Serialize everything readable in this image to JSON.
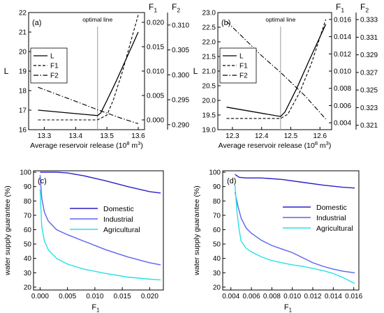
{
  "chart_data": [
    {
      "type": "line",
      "panel_label": "(a)",
      "annotation": "optimal line",
      "optimal_x": 13.47,
      "xlabel": "Average reservoir release (10",
      "xlabel_sup": "8",
      "xlabel_unit": " m",
      "xlabel_unit_sup": "3",
      "xlabel_end": ")",
      "xlim": [
        13.25,
        13.62
      ],
      "xticks": [
        "13.3",
        "13.4",
        "13.5",
        "13.6"
      ],
      "xtick_values": [
        13.3,
        13.4,
        13.5,
        13.6
      ],
      "y_left": {
        "label": "L",
        "lim": [
          16,
          22
        ],
        "ticks": [
          16,
          17,
          18,
          19,
          20,
          21,
          22
        ]
      },
      "y_f1": {
        "label": "F",
        "label_sub": "1",
        "lim": [
          -0.002,
          0.022
        ],
        "ticks": [
          "0.000",
          "0.005",
          "0.010",
          "0.015",
          "0.020"
        ],
        "tick_values": [
          0,
          0.005,
          0.01,
          0.015,
          0.02
        ]
      },
      "y_f2": {
        "label": "F",
        "label_sub": "2",
        "lim": [
          0.289,
          0.3125
        ],
        "ticks": [
          "0.290",
          "0.295",
          "0.300",
          "0.305",
          "0.310"
        ],
        "tick_values": [
          0.29,
          0.295,
          0.3,
          0.305,
          0.31
        ]
      },
      "legend": [
        "L",
        "F1",
        "F2"
      ],
      "series": [
        {
          "name": "L",
          "axis": "left",
          "dash": "solid",
          "x": [
            13.28,
            13.47,
            13.48,
            13.5,
            13.53,
            13.6
          ],
          "values": [
            17.0,
            16.72,
            16.85,
            17.5,
            18.5,
            21.0
          ]
        },
        {
          "name": "F1",
          "axis": "f1",
          "dash": "dash",
          "x": [
            13.28,
            13.47,
            13.5,
            13.52,
            13.55,
            13.58,
            13.6
          ],
          "values": [
            0.0,
            0.0,
            0.001,
            0.004,
            0.01,
            0.017,
            0.0215
          ]
        },
        {
          "name": "F2",
          "axis": "f2",
          "dash": "dashdot",
          "x": [
            13.28,
            13.4,
            13.47,
            13.55,
            13.6
          ],
          "values": [
            0.2975,
            0.2947,
            0.293,
            0.2912,
            0.2902
          ]
        }
      ]
    },
    {
      "type": "line",
      "panel_label": "(b)",
      "annotation": "optimal line",
      "optimal_x": 12.465,
      "xlabel": "Average reservoir release (10",
      "xlabel_sup": "8",
      "xlabel_unit": " m",
      "xlabel_unit_sup": "3",
      "xlabel_end": ")",
      "xlim": [
        12.25,
        12.64
      ],
      "xticks": [
        "12.3",
        "12.4",
        "12.5",
        "12.6"
      ],
      "xtick_values": [
        12.3,
        12.4,
        12.5,
        12.6
      ],
      "y_left": {
        "label": "L",
        "lim": [
          19,
          23
        ],
        "ticks": [
          "19.0",
          "19.5",
          "20.0",
          "20.5",
          "21.0",
          "21.5",
          "22.0",
          "22.5",
          "23.0"
        ],
        "tick_values": [
          19,
          19.5,
          20,
          20.5,
          21,
          21.5,
          22,
          22.5,
          23
        ]
      },
      "y_f1": {
        "label": "F",
        "label_sub": "1",
        "lim": [
          0.0032,
          0.0168
        ],
        "ticks": [
          "0.004",
          "0.006",
          "0.008",
          "0.010",
          "0.012",
          "0.014",
          "0.016"
        ],
        "tick_values": [
          0.004,
          0.006,
          0.008,
          0.01,
          0.012,
          0.014,
          0.016
        ]
      },
      "y_f2": {
        "label": "F",
        "label_sub": "2",
        "lim": [
          0.3205,
          0.3338
        ],
        "ticks": [
          "0.321",
          "0.323",
          "0.325",
          "0.327",
          "0.329",
          "0.331",
          "0.333"
        ],
        "tick_values": [
          0.321,
          0.323,
          0.325,
          0.327,
          0.329,
          0.331,
          0.333
        ]
      },
      "legend": [
        "L",
        "F1",
        "F2"
      ],
      "series": [
        {
          "name": "L",
          "axis": "left",
          "dash": "solid",
          "x": [
            12.28,
            12.465,
            12.48,
            12.52,
            12.56,
            12.62
          ],
          "values": [
            19.77,
            19.45,
            19.6,
            20.4,
            21.3,
            22.6
          ]
        },
        {
          "name": "F1",
          "axis": "f1",
          "dash": "dash",
          "x": [
            12.28,
            12.465,
            12.49,
            12.53,
            12.57,
            12.62
          ],
          "values": [
            0.0045,
            0.0045,
            0.005,
            0.0075,
            0.0108,
            0.016
          ]
        },
        {
          "name": "F2",
          "axis": "f2",
          "dash": "dashdot",
          "x": [
            12.28,
            12.4,
            12.465,
            12.55,
            12.62
          ],
          "values": [
            0.3328,
            0.3289,
            0.327,
            0.3243,
            0.3217
          ]
        }
      ]
    },
    {
      "type": "line",
      "panel_label": "(c)",
      "xlabel": "F",
      "xlabel_sub": "1",
      "ylabel": "water supply guarantee (%)",
      "xlim": [
        -0.0012,
        0.0225
      ],
      "ylim": [
        18,
        101
      ],
      "xticks": [
        "0.000",
        "0.005",
        "0.010",
        "0.015",
        "0.020"
      ],
      "xtick_values": [
        0,
        0.005,
        0.01,
        0.015,
        0.02
      ],
      "yticks": [
        20,
        30,
        40,
        50,
        60,
        70,
        80,
        90,
        100
      ],
      "legend": [
        "Domestic",
        "Industrial",
        "Agricultural"
      ],
      "series": [
        {
          "name": "Domestic",
          "color": "#2a1fc9",
          "x": [
            0.0,
            0.001,
            0.002,
            0.003,
            0.005,
            0.008,
            0.012,
            0.016,
            0.02,
            0.022
          ],
          "values": [
            100,
            100,
            100,
            100,
            99.5,
            97.5,
            94,
            90,
            86.5,
            85.5
          ]
        },
        {
          "name": "Industrial",
          "color": "#5a63ee",
          "x": [
            0.0,
            0.0003,
            0.0008,
            0.0015,
            0.003,
            0.005,
            0.008,
            0.012,
            0.016,
            0.02,
            0.022
          ],
          "values": [
            98,
            82,
            72,
            66,
            60,
            56.5,
            52,
            46,
            41,
            37,
            35.5
          ]
        },
        {
          "name": "Agricultural",
          "color": "#27e0e8",
          "x": [
            0.0,
            0.0003,
            0.0008,
            0.0015,
            0.003,
            0.005,
            0.008,
            0.012,
            0.016,
            0.02,
            0.022
          ],
          "values": [
            88,
            62,
            52,
            46,
            40,
            36,
            32.5,
            29.5,
            27,
            25.5,
            25
          ]
        }
      ]
    },
    {
      "type": "line",
      "panel_label": "(d)",
      "xlabel": "F",
      "xlabel_sub": "1",
      "ylabel": "water supply guarantee (%)",
      "xlim": [
        0.0032,
        0.0165
      ],
      "ylim": [
        18,
        101
      ],
      "xticks": [
        "0.004",
        "0.006",
        "0.008",
        "0.010",
        "0.012",
        "0.014",
        "0.016"
      ],
      "xtick_values": [
        0.004,
        0.006,
        0.008,
        0.01,
        0.012,
        0.014,
        0.016
      ],
      "yticks": [
        20,
        30,
        40,
        50,
        60,
        70,
        80,
        90,
        100
      ],
      "legend": [
        "Domestic",
        "Industrial",
        "Agricultural"
      ],
      "series": [
        {
          "name": "Domestic",
          "color": "#2a1fc9",
          "x": [
            0.0044,
            0.0048,
            0.0055,
            0.007,
            0.009,
            0.011,
            0.013,
            0.015,
            0.0161
          ],
          "values": [
            98.5,
            96.5,
            96,
            96,
            95,
            93,
            91,
            89.5,
            89
          ]
        },
        {
          "name": "Industrial",
          "color": "#5a63ee",
          "x": [
            0.0044,
            0.0047,
            0.005,
            0.0055,
            0.006,
            0.007,
            0.008,
            0.009,
            0.01,
            0.011,
            0.012,
            0.013,
            0.014,
            0.015,
            0.0161
          ],
          "values": [
            86,
            76,
            68,
            61,
            57.5,
            52.5,
            49,
            46.5,
            44,
            40.5,
            37,
            34.5,
            32.5,
            31,
            30
          ]
        },
        {
          "name": "Agricultural",
          "color": "#27e0e8",
          "x": [
            0.0044,
            0.0046,
            0.0048,
            0.005,
            0.0055,
            0.006,
            0.007,
            0.008,
            0.009,
            0.01,
            0.011,
            0.012,
            0.013,
            0.014,
            0.015,
            0.0161
          ],
          "values": [
            91,
            72,
            60,
            52,
            47,
            44.5,
            41,
            38.5,
            37,
            35.5,
            34.5,
            33,
            31.5,
            29.5,
            26.5,
            22.5
          ]
        }
      ]
    }
  ]
}
